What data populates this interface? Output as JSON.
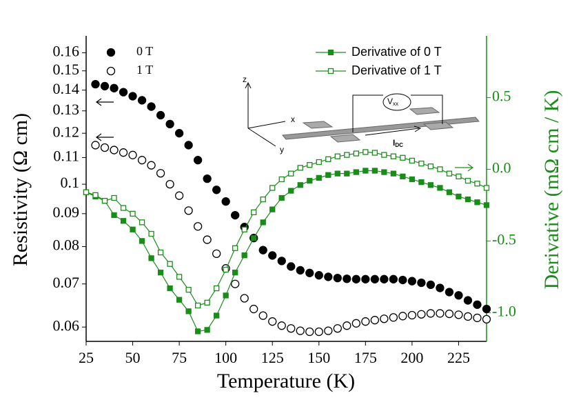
{
  "chart_data": {
    "type": "scatter",
    "xlabel": "Temperature (K)",
    "ylabel": "Resistivity (Ω cm)",
    "y2label": "Derivative (mΩ cm / K)",
    "xlim": [
      25,
      240
    ],
    "xticks": [
      25,
      50,
      75,
      100,
      125,
      150,
      175,
      200,
      225
    ],
    "ylim": [
      0.057,
      0.17
    ],
    "ylog": true,
    "yticks": [
      0.06,
      0.07,
      0.08,
      0.09,
      0.1,
      0.11,
      0.12,
      0.13,
      0.14,
      0.15,
      0.16
    ],
    "y2lim": [
      -1.2,
      0.93
    ],
    "y2ticks": [
      {
        "value": -1.0,
        "label": "-1.0"
      },
      -0.5,
      {
        "value": 0.0,
        "label": "0.0"
      },
      0.5
    ],
    "y2color": "#1a8c1a",
    "legend": "upper left",
    "legend2": "upper right",
    "series": [
      {
        "name": "0 T",
        "color": "#000000",
        "marker": "circle",
        "filled": true,
        "line": false,
        "x": [
          30,
          35,
          40,
          45,
          50,
          55,
          60,
          65,
          70,
          75,
          80,
          85,
          90,
          95,
          100,
          105,
          110,
          115,
          120,
          125,
          130,
          135,
          140,
          145,
          150,
          155,
          160,
          165,
          170,
          175,
          180,
          185,
          190,
          195,
          200,
          205,
          210,
          215,
          220,
          225,
          230,
          235,
          240
        ],
        "values": [
          0.143,
          0.142,
          0.141,
          0.139,
          0.137,
          0.135,
          0.132,
          0.128,
          0.124,
          0.12,
          0.115,
          0.109,
          0.102,
          0.098,
          0.094,
          0.0895,
          0.0858,
          0.0825,
          0.079,
          0.0775,
          0.076,
          0.0745,
          0.0735,
          0.0728,
          0.0722,
          0.0718,
          0.0715,
          0.0713,
          0.0712,
          0.0712,
          0.0712,
          0.0712,
          0.0712,
          0.071,
          0.0707,
          0.0703,
          0.0698,
          0.069,
          0.068,
          0.0672,
          0.066,
          0.065,
          0.064
        ]
      },
      {
        "name": "1 T",
        "color": "#000000",
        "marker": "circle",
        "filled": false,
        "line": false,
        "x": [
          30,
          35,
          40,
          45,
          50,
          55,
          60,
          65,
          70,
          75,
          80,
          85,
          90,
          95,
          100,
          105,
          110,
          115,
          120,
          125,
          130,
          135,
          140,
          145,
          150,
          155,
          160,
          165,
          170,
          175,
          180,
          185,
          190,
          195,
          200,
          205,
          210,
          215,
          220,
          225,
          230,
          235,
          240
        ],
        "values": [
          0.115,
          0.114,
          0.113,
          0.112,
          0.111,
          0.109,
          0.107,
          0.104,
          0.1,
          0.096,
          0.091,
          0.086,
          0.082,
          0.078,
          0.074,
          0.07,
          0.0665,
          0.064,
          0.0625,
          0.0612,
          0.0603,
          0.0597,
          0.0592,
          0.059,
          0.059,
          0.0592,
          0.0597,
          0.0603,
          0.0608,
          0.0612,
          0.0615,
          0.0618,
          0.0621,
          0.0624,
          0.0626,
          0.0628,
          0.063,
          0.063,
          0.0629,
          0.0627,
          0.0623,
          0.062,
          0.0617
        ]
      },
      {
        "name": "Derivative of 0 T",
        "color": "#1a8c1a",
        "marker": "square",
        "filled": true,
        "line": true,
        "axis": "y2",
        "x": [
          25,
          30,
          35,
          40,
          45,
          50,
          55,
          60,
          65,
          70,
          75,
          80,
          85,
          90,
          95,
          100,
          105,
          110,
          115,
          120,
          125,
          130,
          135,
          140,
          145,
          150,
          155,
          160,
          165,
          170,
          175,
          180,
          185,
          190,
          195,
          200,
          205,
          210,
          215,
          220,
          225,
          230,
          235,
          240
        ],
        "values": [
          -0.16,
          -0.19,
          -0.22,
          -0.32,
          -0.36,
          -0.42,
          -0.5,
          -0.62,
          -0.72,
          -0.83,
          -0.91,
          -0.99,
          -1.13,
          -1.12,
          -1.02,
          -0.88,
          -0.72,
          -0.6,
          -0.48,
          -0.37,
          -0.28,
          -0.2,
          -0.15,
          -0.11,
          -0.08,
          -0.06,
          -0.04,
          -0.03,
          -0.03,
          -0.02,
          -0.01,
          -0.01,
          -0.02,
          -0.03,
          -0.05,
          -0.07,
          -0.09,
          -0.11,
          -0.13,
          -0.16,
          -0.19,
          -0.21,
          -0.23,
          -0.25
        ]
      },
      {
        "name": "Derivative of 1 T",
        "color": "#1a8c1a",
        "marker": "square",
        "filled": false,
        "line": true,
        "axis": "y2",
        "x": [
          25,
          30,
          35,
          40,
          45,
          50,
          55,
          60,
          65,
          70,
          75,
          80,
          85,
          90,
          95,
          100,
          105,
          110,
          115,
          120,
          125,
          130,
          135,
          140,
          145,
          150,
          155,
          160,
          165,
          170,
          175,
          180,
          185,
          190,
          195,
          200,
          205,
          210,
          215,
          220,
          225,
          230,
          235,
          240
        ],
        "values": [
          -0.16,
          -0.18,
          -0.22,
          -0.2,
          -0.27,
          -0.31,
          -0.37,
          -0.45,
          -0.58,
          -0.66,
          -0.75,
          -0.84,
          -0.95,
          -0.93,
          -0.83,
          -0.7,
          -0.55,
          -0.42,
          -0.3,
          -0.21,
          -0.13,
          -0.07,
          -0.03,
          0.01,
          0.03,
          0.05,
          0.07,
          0.09,
          0.1,
          0.11,
          0.12,
          0.115,
          0.1,
          0.09,
          0.08,
          0.06,
          0.04,
          0.02,
          0.0,
          -0.03,
          -0.05,
          -0.08,
          -0.1,
          -0.13
        ]
      }
    ],
    "inset": {
      "z": "z",
      "x": "x",
      "y": "y",
      "v": "V",
      "v_sub": "xx",
      "i": "I",
      "i_sub": "DC"
    }
  }
}
